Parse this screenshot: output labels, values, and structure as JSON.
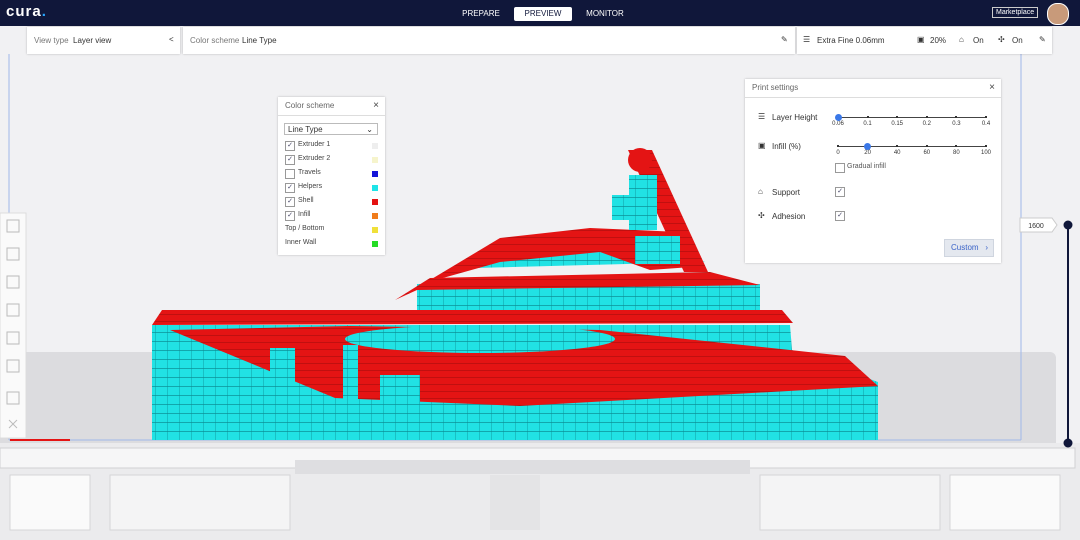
{
  "header": {
    "logo": "cura",
    "tabs": [
      "PREPARE",
      "PREVIEW",
      "MONITOR"
    ],
    "active_tab": 1,
    "marketplace": "Marketplace"
  },
  "toolbar": {
    "view_type_label": "View type",
    "view_type": "Layer view",
    "color_scheme_label": "Color scheme",
    "color_scheme": "Line Type",
    "profile": "Extra Fine 0.06mm",
    "infill": "20%",
    "support": "On",
    "adhesion": "On"
  },
  "color_scheme_panel": {
    "title": "Color scheme",
    "dropdown": "Line Type",
    "items": [
      {
        "label": "Extruder 1",
        "checked": true,
        "color": "#eeeeee"
      },
      {
        "label": "Extruder 2",
        "checked": true,
        "color": "#f6f4cc"
      },
      {
        "label": "Travels",
        "checked": false,
        "color": "#1414d8"
      },
      {
        "label": "Helpers",
        "checked": true,
        "color": "#1ee4e8"
      },
      {
        "label": "Shell",
        "checked": true,
        "color": "#e41212"
      },
      {
        "label": "Infill",
        "checked": true,
        "color": "#f07c1c"
      },
      {
        "label": "Top / Bottom",
        "color": "#f0e03a"
      },
      {
        "label": "Inner Wall",
        "color": "#24dc24"
      }
    ]
  },
  "print_settings": {
    "title": "Print settings",
    "layer_height": {
      "label": "Layer Height",
      "value": 0.06,
      "ticks": [
        0.06,
        0.1,
        0.15,
        0.2,
        0.3,
        0.4
      ]
    },
    "infill": {
      "label": "Infill (%)",
      "value": 20,
      "ticks": [
        0,
        20,
        40,
        60,
        80,
        100
      ]
    },
    "gradual_infill": {
      "label": "Gradual infill",
      "checked": false
    },
    "support": {
      "label": "Support",
      "checked": true
    },
    "adhesion": {
      "label": "Adhesion",
      "checked": true
    },
    "custom_button": "Custom"
  },
  "layer_slider": {
    "label": "1600"
  }
}
